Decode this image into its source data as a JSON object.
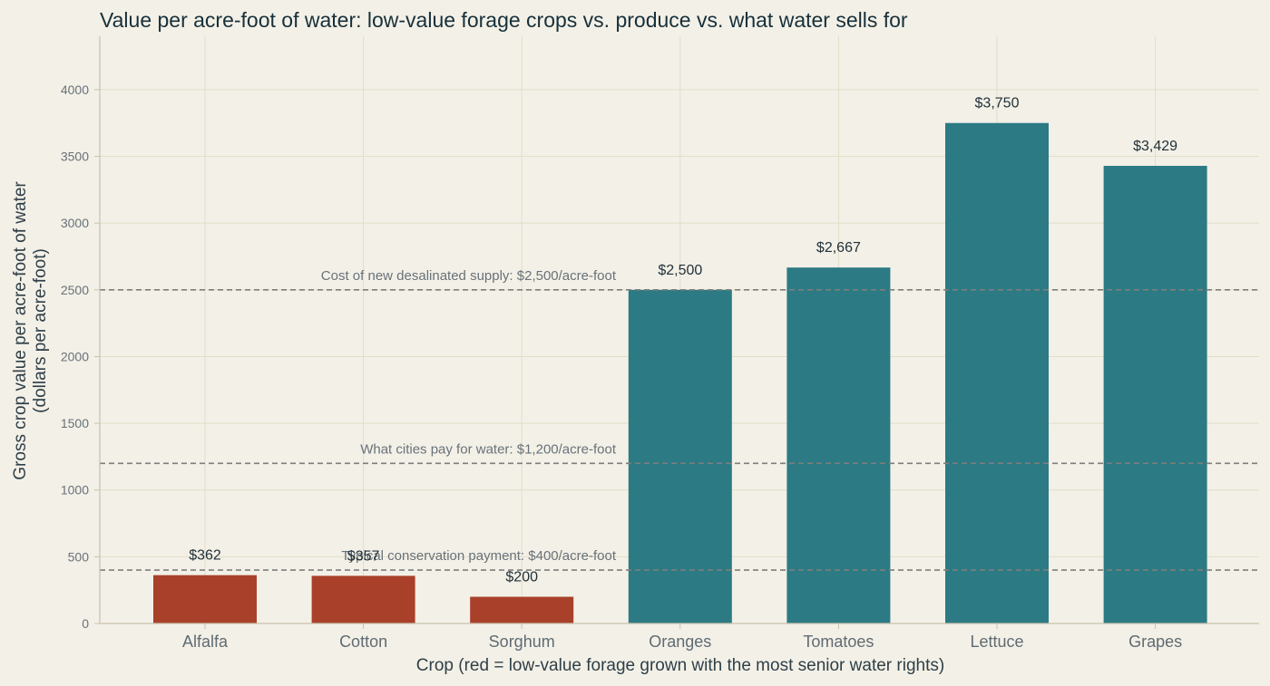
{
  "chart_data": {
    "type": "bar",
    "title": "Value per acre-foot of water: low-value forage crops vs. produce vs. what water sells for",
    "xlabel": "Crop  (red = low-value forage grown with the most senior water rights)",
    "ylabel": [
      "Gross crop value per acre-foot of water",
      "(dollars per acre-foot)"
    ],
    "categories": [
      "Alfalfa",
      "Cotton",
      "Sorghum",
      "Oranges",
      "Tomatoes",
      "Lettuce",
      "Grapes"
    ],
    "values": [
      362,
      357,
      200,
      2500,
      2667,
      3750,
      3429
    ],
    "value_labels": [
      "$362",
      "$357",
      "$200",
      "$2,500",
      "$2,667",
      "$3,750",
      "$3,429"
    ],
    "bar_colors": [
      "#a8402a",
      "#a8402a",
      "#a8402a",
      "#2c7a84",
      "#2c7a84",
      "#2c7a84",
      "#2c7a84"
    ],
    "ylim": [
      0,
      4400
    ],
    "yticks": [
      0,
      500,
      1000,
      1500,
      2000,
      2500,
      3000,
      3500,
      4000
    ],
    "grid": true,
    "reference_lines": [
      {
        "value": 2500,
        "label": "Cost of new desalinated supply: $2,500/acre-foot"
      },
      {
        "value": 1200,
        "label": "What cities pay for water: $1,200/acre-foot"
      },
      {
        "value": 400,
        "label": "Typical conservation payment: $400/acre-foot"
      }
    ]
  }
}
